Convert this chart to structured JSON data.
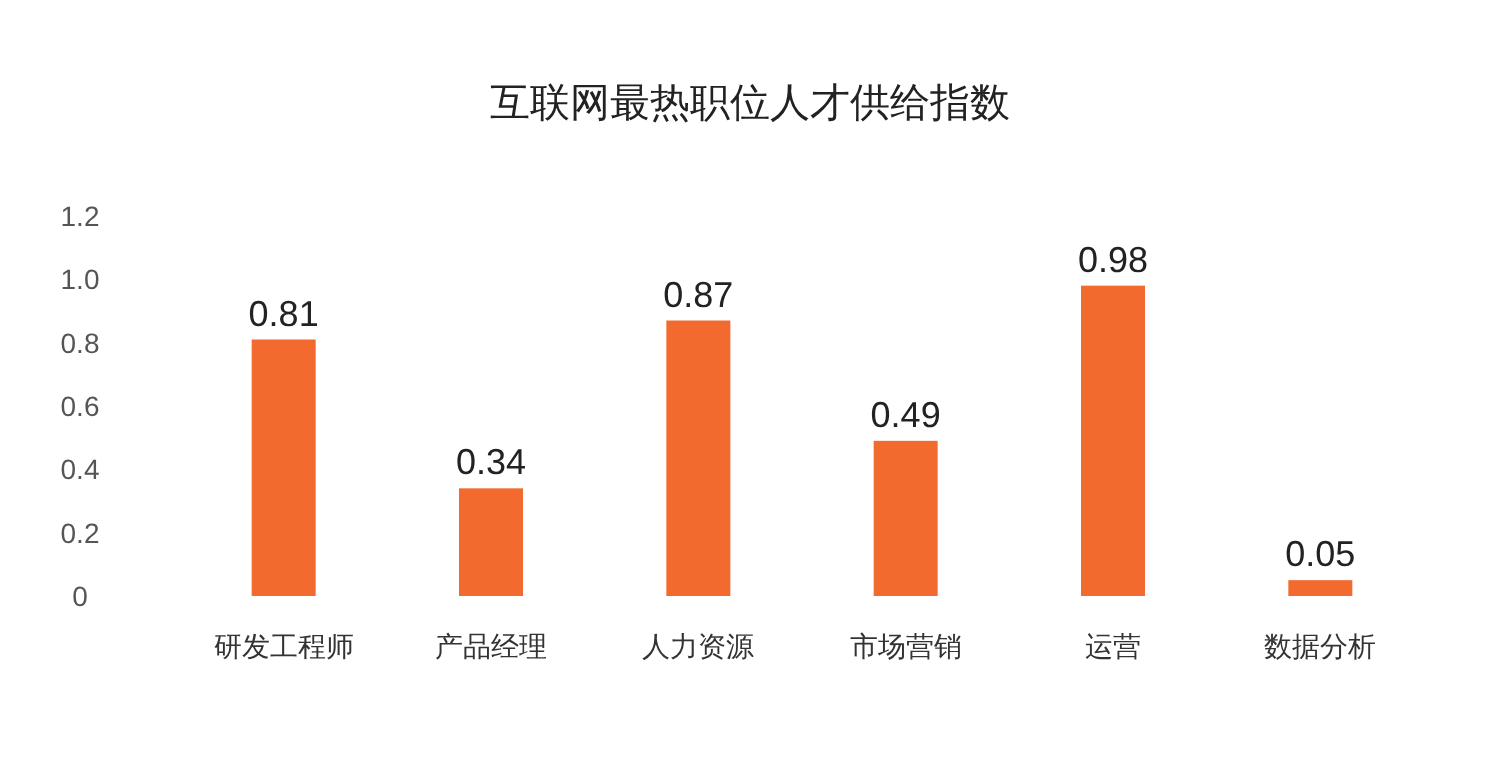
{
  "chart_data": {
    "type": "bar",
    "title": "互联网最热职位人才供给指数",
    "categories": [
      "研发工程师",
      "产品经理",
      "人力资源",
      "市场营销",
      "运营",
      "数据分析"
    ],
    "values": [
      0.81,
      0.34,
      0.87,
      0.49,
      0.98,
      0.05
    ],
    "color": "#f26a2e",
    "ylim": [
      0,
      1.2
    ],
    "yticks": [
      0,
      0.2,
      0.4,
      0.6,
      0.8,
      {
        "value": 1,
        "label": "1.0"
      },
      1.2
    ],
    "data_labels": true
  }
}
